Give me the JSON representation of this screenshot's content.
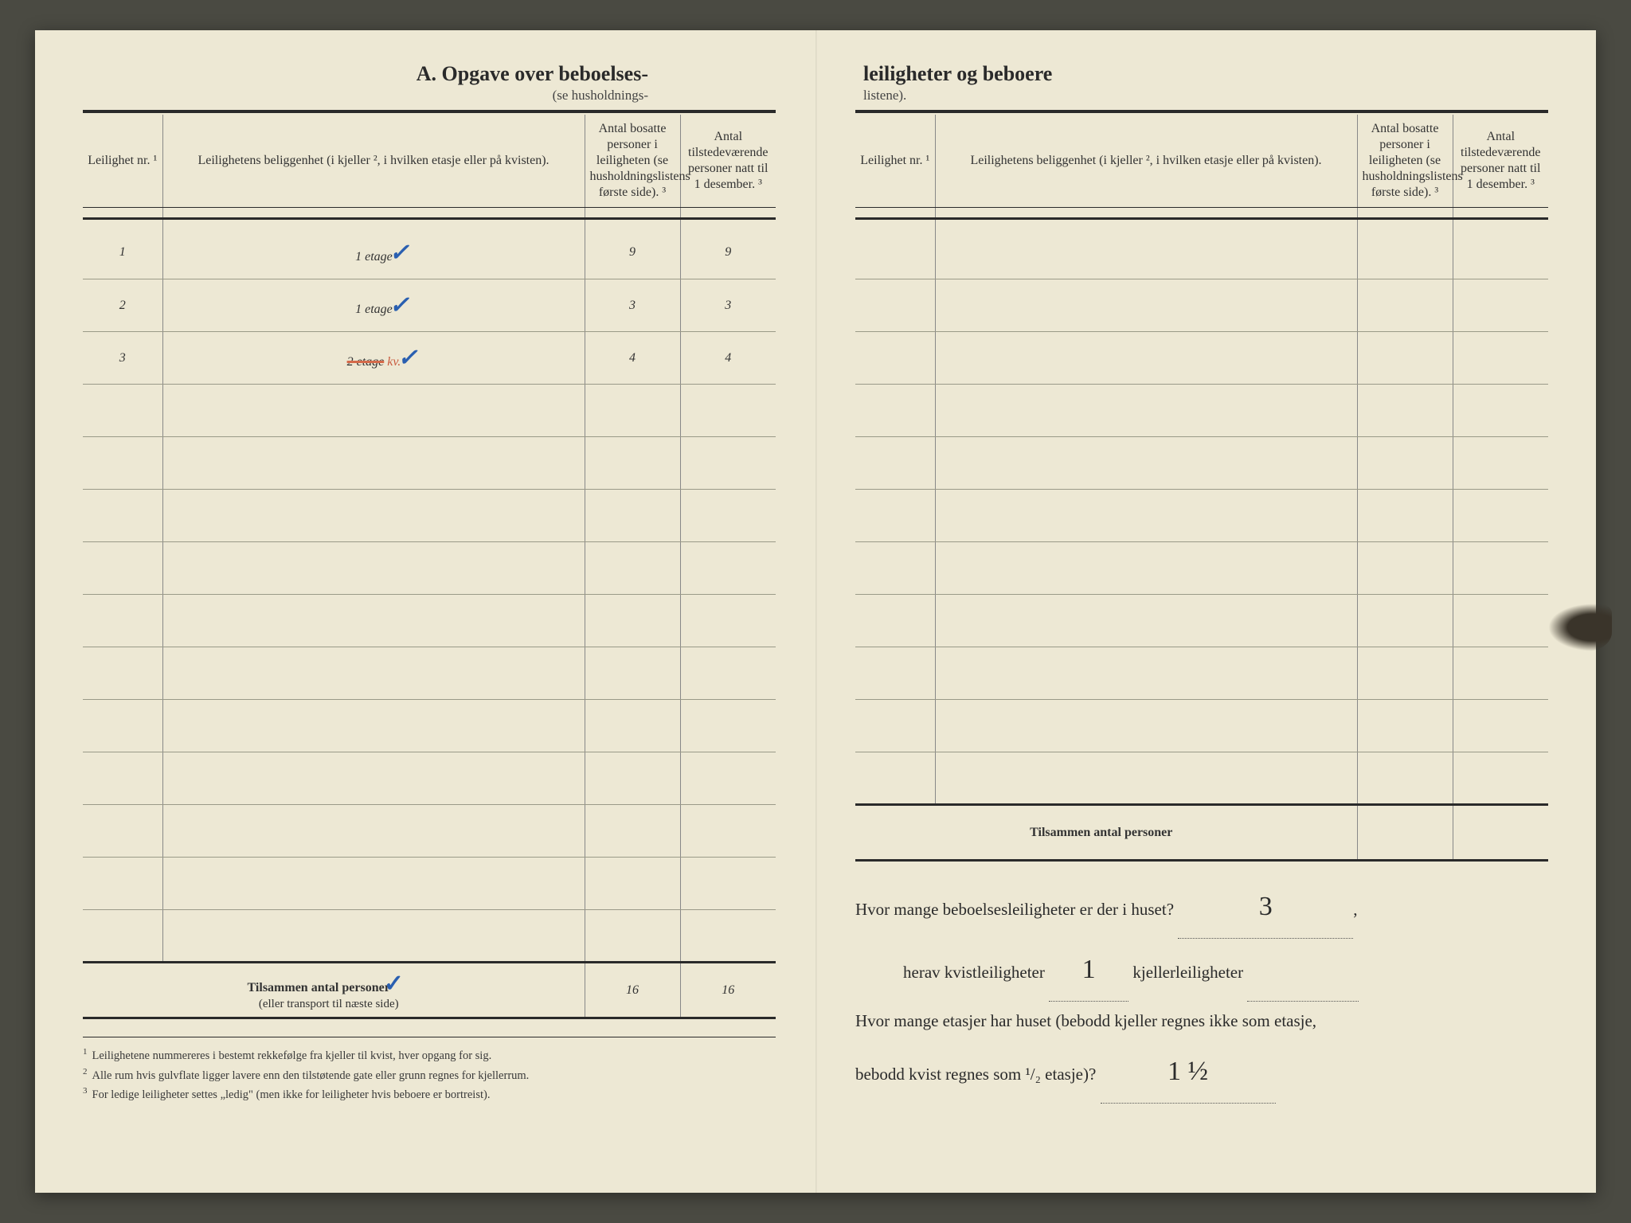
{
  "document": {
    "background_color": "#ede8d4",
    "ink_color": "#2a2a2a",
    "rule_color": "#888888",
    "handwriting_color": "#2b2b2b",
    "red_correction_color": "#c95b3f",
    "blue_tick_color": "#2a5fb0"
  },
  "left_page": {
    "title": "A.  Opgave over beboelses-",
    "subtitle": "(se husholdnings-",
    "columns": {
      "nr": "Leilighet nr. ¹",
      "location": "Leilighetens beliggenhet (i kjeller ², i hvilken etasje eller på kvisten).",
      "count1": "Antal bosatte personer i leiligheten (se husholdningslistens første side). ³",
      "count2": "Antal tilstedeværende personer natt til 1 desember. ³"
    },
    "rows": [
      {
        "nr": "1",
        "location": "1 etage",
        "tick": "✓",
        "c1": "9",
        "c2": "9"
      },
      {
        "nr": "2",
        "location": "1 etage",
        "tick": "✓",
        "c1": "3",
        "c2": "3"
      },
      {
        "nr": "3",
        "location_struck": "2 etage",
        "location_corr": "kv.",
        "tick": "✓",
        "c1": "4",
        "c2": "4"
      }
    ],
    "empty_row_count": 11,
    "totals": {
      "label": "Tilsammen antal personer",
      "sublabel": "(eller transport til næste side)",
      "tick": "✓",
      "c1": "16",
      "c2": "16"
    },
    "footnotes": [
      "Leilighetene nummereres i bestemt rekkefølge fra kjeller til kvist, hver opgang for sig.",
      "Alle rum hvis gulvflate ligger lavere enn den tilstøtende gate eller grunn regnes for kjellerrum.",
      "For ledige leiligheter settes „ledig\" (men ikke for leiligheter hvis beboere er bortreist)."
    ]
  },
  "right_page": {
    "title": "leiligheter og beboere",
    "subtitle": "listene).",
    "columns": {
      "nr": "Leilighet nr. ¹",
      "location": "Leilighetens beliggenhet (i kjeller ², i hvilken etasje eller på kvisten).",
      "count1": "Antal bosatte personer i leiligheten (se husholdningslistens første side). ³",
      "count2": "Antal tilstedeværende personer natt til 1 desember. ³"
    },
    "empty_row_count": 11,
    "totals_label": "Tilsammen antal personer",
    "questions": {
      "q1_pre": "Hvor mange beboelsesleiligheter er der i huset?",
      "q1_ans": "3",
      "q2_pre": "herav kvistleiligheter",
      "q2_ans": "1",
      "q2_mid": "kjellerleiligheter",
      "q2_ans2": "",
      "q3_pre": "Hvor mange etasjer har huset (bebodd kjeller regnes ikke som etasje,",
      "q3_cont": "bebodd kvist regnes som ¹/₂ etasje)?",
      "q3_ans": "1 ½"
    }
  }
}
